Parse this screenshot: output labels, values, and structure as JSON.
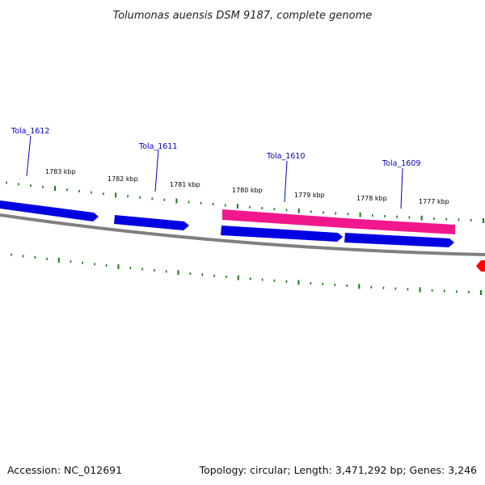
{
  "title": "Tolumonas auensis DSM 9187, complete genome",
  "accession_text": "Accession: NC_012691",
  "summary_text": "Topology: circular; Length: 3,471,292 bp; Genes: 3,246",
  "colors": {
    "forward_gene": "#0000e0",
    "highlight_gene": "#f0188c",
    "backbone": "#808080",
    "tick": "#1a7a1a",
    "label": "#0000c8",
    "red_marker": "#ff0000"
  },
  "kbp_labels": [
    "1783 kbp",
    "1782 kbp",
    "1781 kbp",
    "1780 kbp",
    "1779 kbp",
    "1778 kbp",
    "1777 kbp"
  ],
  "gene_labels": [
    "Tola_1612",
    "Tola_1611",
    "Tola_1610",
    "Tola_1609"
  ]
}
